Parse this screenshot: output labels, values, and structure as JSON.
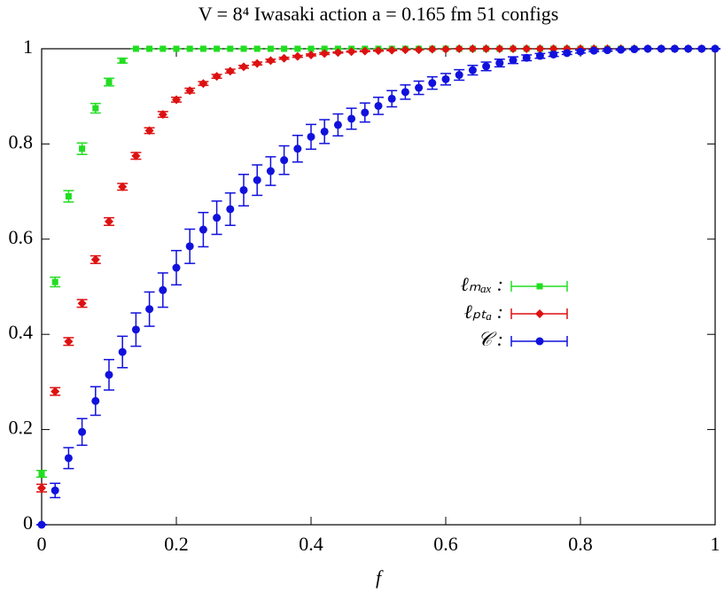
{
  "chart_data": {
    "type": "scatter",
    "title": "V = 8⁴  Iwasaki action  a = 0.165 fm  51 configs",
    "xlabel": "f",
    "xlim": [
      0,
      1
    ],
    "ylim": [
      0,
      1
    ],
    "xticks": [
      0,
      0.2,
      0.4,
      0.6,
      0.8,
      1
    ],
    "yticks": [
      0,
      0.2,
      0.4,
      0.6,
      0.8,
      1
    ],
    "legend": "right",
    "x": [
      0,
      0.02,
      0.04,
      0.06,
      0.08,
      0.1,
      0.12,
      0.14,
      0.16,
      0.18,
      0.2,
      0.22,
      0.24,
      0.26,
      0.28,
      0.3,
      0.32,
      0.34,
      0.36,
      0.38,
      0.4,
      0.42,
      0.44,
      0.46,
      0.48,
      0.5,
      0.52,
      0.54,
      0.56,
      0.58,
      0.6,
      0.62,
      0.64,
      0.66,
      0.68,
      0.7,
      0.72,
      0.74,
      0.76,
      0.78,
      0.8,
      0.82,
      0.84,
      0.86,
      0.88,
      0.9,
      0.92,
      0.94,
      0.96,
      0.98,
      1
    ],
    "series": [
      {
        "name": "ℓₘₐₓ :",
        "color": "#22dd22",
        "marker": "square",
        "values": [
          0.107,
          0.51,
          0.69,
          0.79,
          0.875,
          0.93,
          0.975,
          1,
          1,
          1,
          1,
          1,
          1,
          1,
          1,
          1,
          1,
          1,
          1,
          1,
          1,
          1,
          1,
          1,
          1,
          1,
          1,
          1,
          1,
          1,
          1,
          1,
          1,
          1,
          1,
          1,
          1,
          1,
          1,
          1,
          1,
          1,
          1,
          1,
          1,
          1,
          1,
          1,
          1,
          1,
          1
        ],
        "errors": [
          0.007,
          0.01,
          0.012,
          0.012,
          0.01,
          0.008,
          0.005,
          0,
          0,
          0,
          0,
          0,
          0,
          0,
          0,
          0,
          0,
          0,
          0,
          0,
          0,
          0,
          0,
          0,
          0,
          0,
          0,
          0,
          0,
          0,
          0,
          0,
          0,
          0,
          0,
          0,
          0,
          0,
          0,
          0,
          0,
          0,
          0,
          0,
          0,
          0,
          0,
          0,
          0,
          0,
          0
        ]
      },
      {
        "name": "ℓₚₜₐ :",
        "color": "#dd1111",
        "marker": "diamond",
        "values": [
          0.077,
          0.28,
          0.385,
          0.465,
          0.557,
          0.637,
          0.71,
          0.775,
          0.828,
          0.862,
          0.893,
          0.912,
          0.927,
          0.942,
          0.953,
          0.962,
          0.969,
          0.975,
          0.98,
          0.984,
          0.987,
          0.99,
          0.992,
          0.994,
          0.995,
          0.996,
          0.997,
          0.998,
          0.998,
          0.999,
          0.999,
          1,
          1,
          1,
          1,
          1,
          1,
          1,
          1,
          1,
          1,
          1,
          1,
          1,
          1,
          1,
          1,
          1,
          1,
          1,
          1
        ],
        "errors": [
          0.008,
          0.008,
          0.008,
          0.008,
          0.008,
          0.008,
          0.007,
          0.007,
          0.006,
          0.006,
          0.005,
          0.005,
          0.004,
          0.004,
          0.004,
          0.003,
          0.003,
          0.003,
          0.002,
          0.002,
          0.002,
          0.002,
          0.001,
          0.001,
          0.001,
          0.001,
          0.001,
          0,
          0,
          0,
          0,
          0,
          0,
          0,
          0,
          0,
          0,
          0,
          0,
          0,
          0,
          0,
          0,
          0,
          0,
          0,
          0,
          0,
          0,
          0,
          0
        ]
      },
      {
        "name": "𝒞 :",
        "color": "#1111dd",
        "marker": "circle",
        "values": [
          0,
          0.072,
          0.14,
          0.195,
          0.26,
          0.315,
          0.363,
          0.41,
          0.453,
          0.493,
          0.54,
          0.585,
          0.62,
          0.645,
          0.663,
          0.703,
          0.724,
          0.743,
          0.766,
          0.79,
          0.815,
          0.826,
          0.84,
          0.853,
          0.866,
          0.88,
          0.895,
          0.909,
          0.918,
          0.928,
          0.936,
          0.945,
          0.955,
          0.963,
          0.97,
          0.976,
          0.981,
          0.985,
          0.988,
          0.991,
          0.994,
          0.996,
          0.997,
          0.998,
          0.999,
          1,
          1,
          1,
          1,
          1,
          1
        ],
        "errors": [
          0,
          0.015,
          0.022,
          0.028,
          0.03,
          0.032,
          0.033,
          0.035,
          0.036,
          0.036,
          0.036,
          0.036,
          0.036,
          0.035,
          0.034,
          0.033,
          0.032,
          0.03,
          0.03,
          0.028,
          0.026,
          0.025,
          0.023,
          0.022,
          0.02,
          0.018,
          0.017,
          0.015,
          0.014,
          0.013,
          0.012,
          0.011,
          0.01,
          0.009,
          0.008,
          0.007,
          0.006,
          0.005,
          0.004,
          0.003,
          0.003,
          0.002,
          0.002,
          0.001,
          0.001,
          0,
          0,
          0,
          0,
          0,
          0
        ]
      }
    ]
  }
}
